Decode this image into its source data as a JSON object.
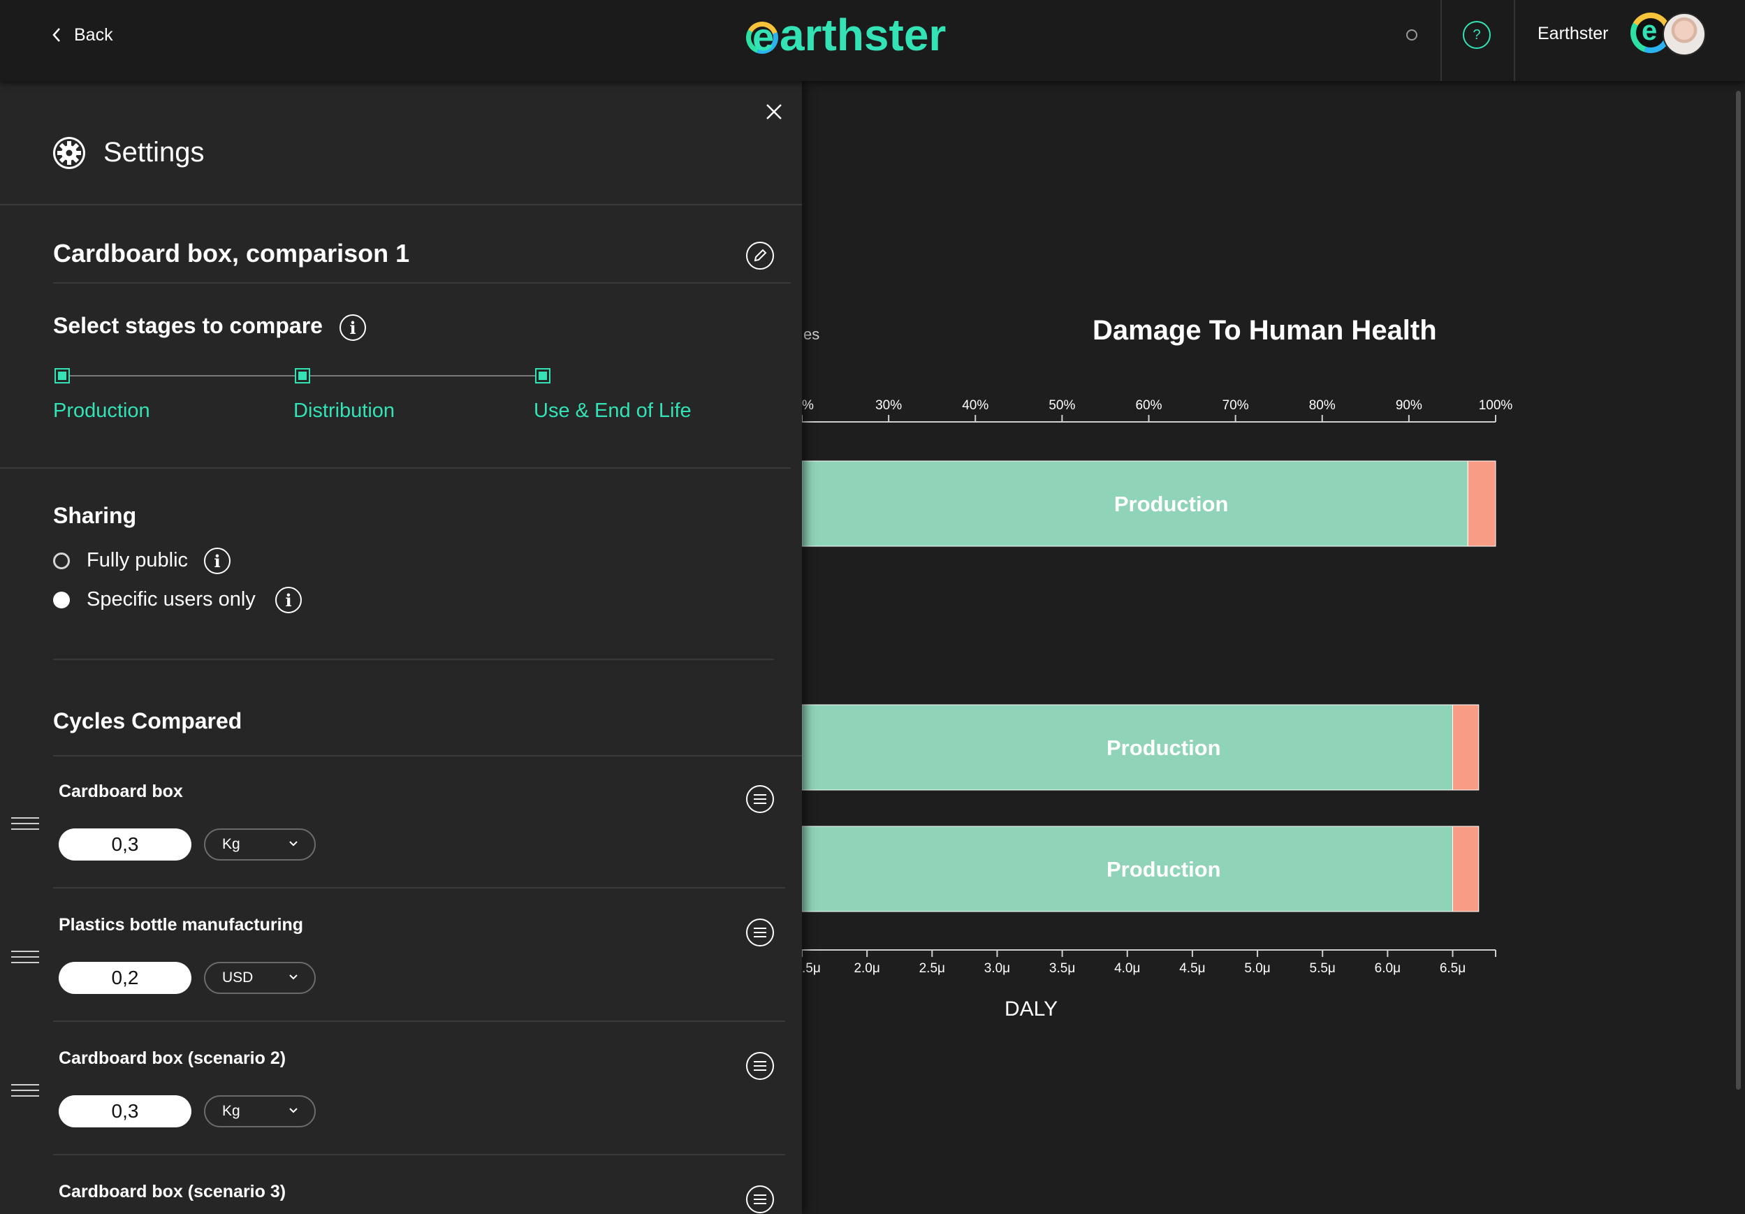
{
  "header": {
    "back_label": "Back",
    "logo_text": "arthster",
    "logo_letter": "e",
    "help_glyph": "?",
    "user_name": "Earthster",
    "org_badge_letter": "e",
    "accent_color": "#33e3b6"
  },
  "settings": {
    "title": "Settings",
    "comparison_name": "Cardboard box, comparison 1",
    "stages_title": "Select stages to compare",
    "stages": [
      {
        "label": "Production",
        "checked": true
      },
      {
        "label": "Distribution",
        "checked": true
      },
      {
        "label": "Use & End of Life",
        "checked": true
      }
    ],
    "sharing_title": "Sharing",
    "sharing_options": [
      {
        "label": "Fully public",
        "selected": false
      },
      {
        "label": "Specific users only",
        "selected": true
      }
    ],
    "cycles_title": "Cycles Compared",
    "cycles": [
      {
        "name": "Cardboard box",
        "quantity": "0,3",
        "unit": "Kg"
      },
      {
        "name": "Plastics bottle manufacturing",
        "quantity": "0,2",
        "unit": "USD"
      },
      {
        "name": "Cardboard box (scenario 2)",
        "quantity": "0,3",
        "unit": "Kg"
      },
      {
        "name": "Cardboard box (scenario 3)"
      }
    ]
  },
  "chart_partial_label": "es",
  "chart_data": [
    {
      "type": "bar",
      "orientation": "horizontal",
      "stacked": true,
      "title": "Damage To Human Health",
      "axis": "top",
      "tick_labels": [
        "%",
        "30%",
        "40%",
        "50%",
        "60%",
        "70%",
        "80%",
        "90%",
        "100%"
      ],
      "tick_values": [
        20,
        30,
        40,
        50,
        60,
        70,
        80,
        90,
        100
      ],
      "xlim": [
        20,
        100
      ],
      "colors": {
        "Production": "#8fd3b8",
        "Distribution": "#f89c85"
      },
      "rows": [
        {
          "segments": [
            {
              "stage": "Production",
              "label": "Production",
              "end": 96.8
            },
            {
              "stage": "Distribution",
              "label": "",
              "end": 100
            }
          ]
        }
      ]
    },
    {
      "type": "bar",
      "orientation": "horizontal",
      "stacked": true,
      "axis": "bottom",
      "xlabel": "DALY",
      "tick_labels": [
        ".5μ",
        "2.0μ",
        "2.5μ",
        "3.0μ",
        "3.5μ",
        "4.0μ",
        "4.5μ",
        "5.0μ",
        "5.5μ",
        "6.0μ",
        "6.5μ"
      ],
      "tick_values": [
        1.5,
        2.0,
        2.5,
        3.0,
        3.5,
        4.0,
        4.5,
        5.0,
        5.5,
        6.0,
        6.5
      ],
      "xlim": [
        1.5,
        6.83
      ],
      "colors": {
        "Production": "#8fd3b8",
        "Distribution": "#f89c85"
      },
      "rows": [
        {
          "segments": [
            {
              "stage": "Production",
              "label": "Production",
              "end": 6.5
            },
            {
              "stage": "Distribution",
              "label": "",
              "end": 6.7
            }
          ]
        },
        {
          "segments": [
            {
              "stage": "Production",
              "label": "Production",
              "end": 6.5
            },
            {
              "stage": "Distribution",
              "label": "",
              "end": 6.7
            }
          ]
        }
      ]
    }
  ]
}
